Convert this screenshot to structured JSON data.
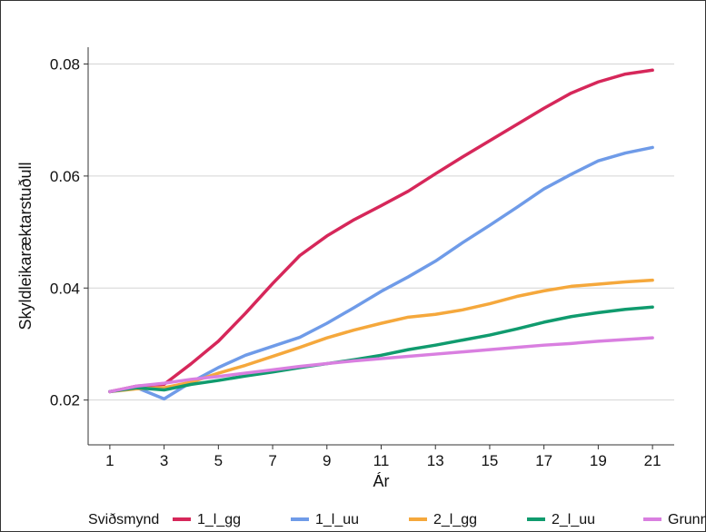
{
  "chart_data": {
    "type": "line",
    "title": "",
    "xlabel": "Ár",
    "ylabel": "Skyldleikaræktarstuðull",
    "xlim": [
      1,
      21
    ],
    "ylim": [
      0.012,
      0.083
    ],
    "xticks": [
      1,
      3,
      5,
      7,
      9,
      11,
      13,
      15,
      17,
      19,
      21
    ],
    "yticks": [
      0.02,
      0.04,
      0.06,
      0.08
    ],
    "ytick_labels": [
      "0.02",
      "0.04",
      "0.06",
      "0.08"
    ],
    "grid": "horizontal major",
    "legend": {
      "title": "Sviðsmynd",
      "position": "bottom"
    },
    "x": [
      1,
      2,
      3,
      4,
      5,
      6,
      7,
      8,
      9,
      10,
      11,
      12,
      13,
      14,
      15,
      16,
      17,
      18,
      19,
      20,
      21
    ],
    "series": [
      {
        "name": "1_l_gg",
        "color": "#d6275a",
        "values": [
          0.0215,
          0.0225,
          0.0228,
          0.0265,
          0.0305,
          0.0355,
          0.0408,
          0.0458,
          0.0493,
          0.0522,
          0.0547,
          0.0573,
          0.0604,
          0.0634,
          0.0663,
          0.0692,
          0.0721,
          0.0748,
          0.0768,
          0.0782,
          0.0789
        ]
      },
      {
        "name": "1_l_uu",
        "color": "#6f9be8",
        "values": [
          0.0215,
          0.0222,
          0.0202,
          0.0232,
          0.0258,
          0.028,
          0.0296,
          0.0312,
          0.0337,
          0.0365,
          0.0394,
          0.042,
          0.0448,
          0.0481,
          0.0512,
          0.0544,
          0.0577,
          0.0603,
          0.0627,
          0.0641,
          0.0651
        ]
      },
      {
        "name": "2_l_gg",
        "color": "#f5a83c",
        "values": [
          0.0215,
          0.022,
          0.0222,
          0.0232,
          0.0248,
          0.0262,
          0.0278,
          0.0294,
          0.0311,
          0.0325,
          0.0337,
          0.0348,
          0.0353,
          0.0361,
          0.0372,
          0.0385,
          0.0395,
          0.0403,
          0.0407,
          0.0411,
          0.0414
        ]
      },
      {
        "name": "2_l_uu",
        "color": "#109b6e",
        "values": [
          0.0215,
          0.0222,
          0.0218,
          0.0228,
          0.0235,
          0.0243,
          0.025,
          0.0258,
          0.0265,
          0.0272,
          0.028,
          0.029,
          0.0298,
          0.0307,
          0.0316,
          0.0327,
          0.0339,
          0.0349,
          0.0356,
          0.0362,
          0.0366
        ]
      },
      {
        "name": "Grunnur",
        "color": "#d97fe0",
        "values": [
          0.0215,
          0.0225,
          0.023,
          0.0237,
          0.0242,
          0.0248,
          0.0254,
          0.026,
          0.0265,
          0.027,
          0.0274,
          0.0278,
          0.0282,
          0.0286,
          0.029,
          0.0294,
          0.0298,
          0.0301,
          0.0305,
          0.0308,
          0.0311
        ]
      }
    ]
  }
}
